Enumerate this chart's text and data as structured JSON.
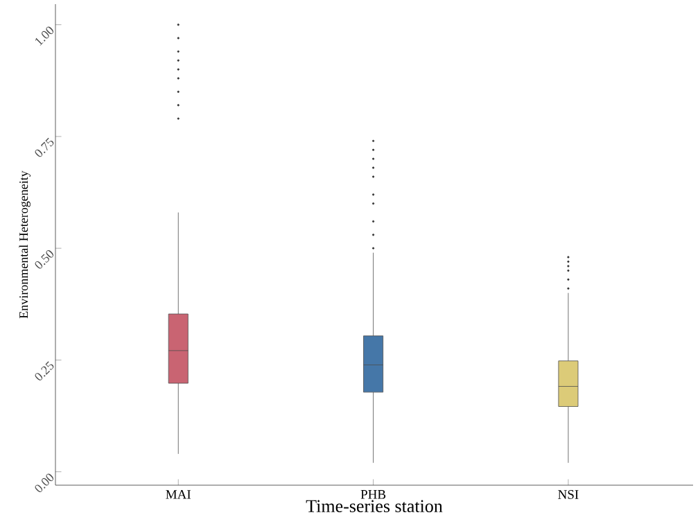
{
  "chart_data": {
    "type": "box",
    "xlabel": "Time-series station",
    "ylabel": "Environmental Heterogeneity",
    "categories": [
      "MAI",
      "PHB",
      "NSI"
    ],
    "colors": [
      "#c96472",
      "#4577a8",
      "#dccb78"
    ],
    "boxes": [
      {
        "low": 0.04,
        "q1": 0.198,
        "median": 0.271,
        "q3": 0.353,
        "high": 0.58,
        "outliers": [
          0.79,
          0.82,
          0.85,
          0.88,
          0.9,
          0.92,
          0.94,
          0.97,
          1.0
        ]
      },
      {
        "low": 0.02,
        "q1": 0.178,
        "median": 0.239,
        "q3": 0.304,
        "high": 0.49,
        "outliers": [
          0.5,
          0.53,
          0.56,
          0.6,
          0.62,
          0.66,
          0.68,
          0.7,
          0.72,
          0.74
        ]
      },
      {
        "low": 0.02,
        "q1": 0.146,
        "median": 0.191,
        "q3": 0.248,
        "high": 0.4,
        "outliers": [
          0.41,
          0.43,
          0.45,
          0.46,
          0.47,
          0.48
        ]
      }
    ],
    "ylim": [
      -0.03,
      1.046
    ],
    "yticks": [
      {
        "value": 0,
        "label": "0.00"
      },
      {
        "value": 0.25,
        "label": "0.25"
      },
      {
        "value": 0.5,
        "label": "0.50"
      },
      {
        "value": 0.75,
        "label": "0.75"
      },
      {
        "value": 1,
        "label": "1.00"
      }
    ],
    "grid": false
  }
}
